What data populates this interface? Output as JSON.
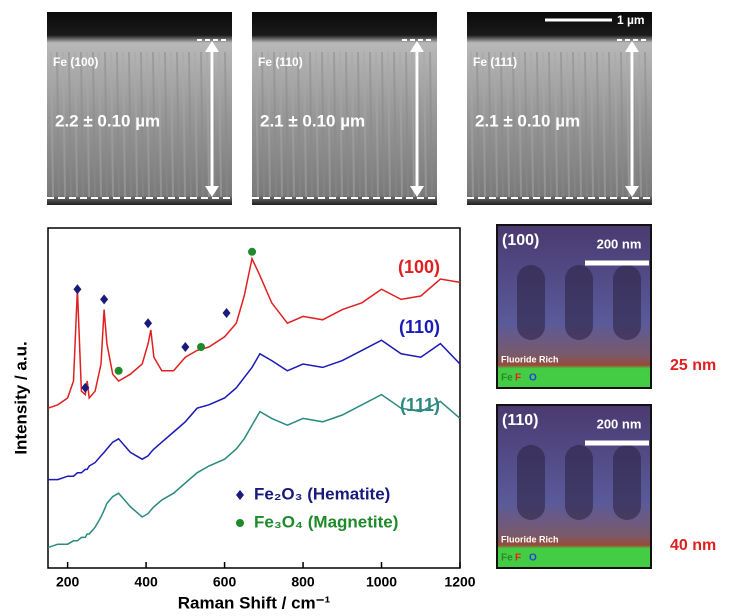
{
  "chart_data": {
    "type": "line",
    "x_label": "Raman Shift / cm⁻¹",
    "y_label": "Intensity / a.u.",
    "xlim": [
      150,
      1200
    ],
    "xticks": [
      200,
      400,
      600,
      800,
      1000,
      1200
    ],
    "ylim": [
      0,
      100
    ],
    "x": [
      150,
      175,
      200,
      215,
      225,
      235,
      245,
      250,
      255,
      270,
      285,
      293,
      300,
      315,
      330,
      360,
      390,
      405,
      412,
      420,
      440,
      470,
      500,
      530,
      560,
      600,
      630,
      650,
      670,
      690,
      720,
      760,
      800,
      850,
      900,
      950,
      1000,
      1050,
      1100,
      1150,
      1200
    ],
    "series": [
      {
        "name": "(100)",
        "color": "#e02020",
        "values": [
          47,
          48,
          50,
          55,
          82,
          52,
          51,
          55,
          50,
          52,
          60,
          76,
          66,
          57,
          55,
          57,
          60,
          66,
          70,
          62,
          58,
          58,
          62,
          64,
          65,
          68,
          72,
          80,
          91,
          86,
          78,
          72,
          74,
          73,
          76,
          78,
          82,
          79,
          80,
          85,
          84
        ]
      },
      {
        "name": "(110)",
        "color": "#1a1ab8",
        "values": [
          26,
          26,
          27,
          27,
          28,
          28,
          29,
          29,
          30,
          31,
          33,
          34,
          35,
          37,
          38,
          34,
          32,
          33,
          34,
          35,
          37,
          40,
          43,
          47,
          48,
          50,
          53,
          56,
          59,
          63,
          61,
          58,
          60,
          59,
          61,
          64,
          67,
          63,
          62,
          66,
          60
        ]
      },
      {
        "name": "(111)",
        "color": "#2a8a80",
        "values": [
          6,
          7,
          7,
          8,
          8,
          9,
          9,
          10,
          10,
          12,
          15,
          17,
          19,
          21,
          22,
          18,
          15,
          16,
          17,
          18,
          20,
          22,
          25,
          28,
          30,
          32,
          35,
          38,
          42,
          46,
          44,
          42,
          44,
          43,
          45,
          48,
          51,
          47,
          46,
          49,
          44
        ]
      }
    ],
    "markers": [
      {
        "name": "Fe₂O₃ (Hematite)",
        "color": "#1a1a7a",
        "shape": "diamond",
        "x": [
          225,
          245,
          293,
          405,
          500,
          605
        ],
        "y": [
          82,
          53,
          79,
          72,
          65,
          75
        ]
      },
      {
        "name": "Fe₃O₄ (Magnetite)",
        "color": "#1e8a2a",
        "shape": "circle",
        "x": [
          330,
          540,
          670
        ],
        "y": [
          58,
          65,
          93
        ]
      }
    ]
  },
  "sem_panels": [
    {
      "label": "Fe (100)",
      "thickness": "2.2 ± 0.10 µm"
    },
    {
      "label": "Fe (110)",
      "thickness": "2.1 ± 0.10 µm"
    },
    {
      "label": "Fe (111)",
      "thickness": "2.1 ± 0.10 µm"
    }
  ],
  "sem_scale_bar": "1 µm",
  "eds_panels": [
    {
      "label": "(100)",
      "scale": "200 nm",
      "layer": "Fluoride Rich",
      "elements": [
        "Fe",
        "F",
        "O"
      ],
      "thickness": "25 nm"
    },
    {
      "label": "(110)",
      "scale": "200 nm",
      "layer": "Fluoride Rich",
      "elements": [
        "Fe",
        "F",
        "O"
      ],
      "thickness": "40 nm"
    }
  ]
}
